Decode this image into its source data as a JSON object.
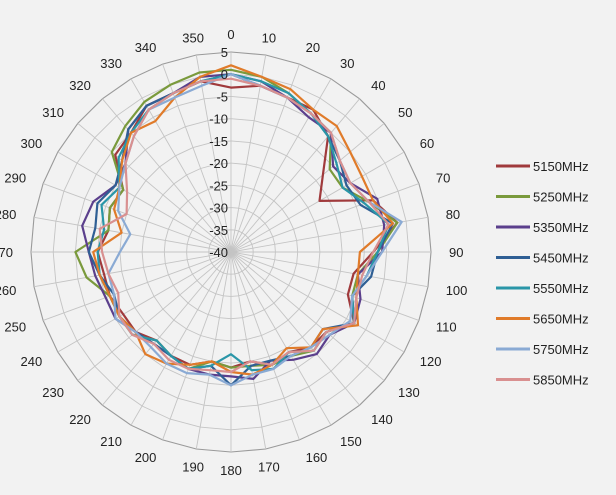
{
  "chart_data": {
    "type": "radar",
    "angle_labels": [
      "0",
      "10",
      "20",
      "30",
      "40",
      "50",
      "60",
      "70",
      "80",
      "90",
      "100",
      "110",
      "120",
      "130",
      "140",
      "150",
      "160",
      "170",
      "180",
      "190",
      "200",
      "210",
      "220",
      "230",
      "240",
      "250",
      "260",
      "270",
      "280",
      "290",
      "300",
      "310",
      "320",
      "330",
      "340",
      "350"
    ],
    "radial_ticks": [
      "5",
      "0",
      "-5",
      "-10",
      "-15",
      "-20",
      "-25",
      "-30",
      "-35",
      "-40"
    ],
    "rlim": [
      -40,
      5
    ],
    "grid": true,
    "legend_position": "right",
    "series": [
      {
        "name": "5150MHz",
        "color": "#a03a3c",
        "values": [
          -3,
          -2,
          -3,
          -3,
          -6,
          -13,
          -17,
          -6,
          -2,
          -8,
          -12,
          -12,
          -8,
          -12,
          -12,
          -14,
          -13,
          -15,
          -14,
          -15,
          -13,
          -13,
          -14,
          -12,
          -12,
          -11,
          -11,
          -10,
          -12,
          -11,
          -12,
          -6,
          -5,
          -2,
          -2,
          -1
        ]
      },
      {
        "name": "5250MHz",
        "color": "#7a9a3c",
        "values": [
          1,
          0,
          -2,
          -4,
          -5,
          -11,
          -11,
          -7,
          -2,
          -7,
          -11,
          -11,
          -8,
          -12,
          -11,
          -13,
          -13,
          -14,
          -14,
          -15,
          -12,
          -13,
          -14,
          -11,
          -11,
          -11,
          -7,
          -5,
          -12,
          -11,
          -12,
          -5,
          -3,
          -1,
          0,
          1
        ]
      },
      {
        "name": "5350MHz",
        "color": "#5b3f8c",
        "values": [
          0,
          -1,
          -3,
          -5,
          -5,
          -10,
          -9,
          -5,
          -5,
          -6,
          -11,
          -9,
          -8,
          -11,
          -10,
          -12,
          -14,
          -11,
          -12,
          -12,
          -12,
          -13,
          -13,
          -12,
          -10,
          -10,
          -9,
          -8,
          -6,
          -7,
          -10,
          -9,
          -4,
          -2,
          -2,
          0
        ]
      },
      {
        "name": "5450MHz",
        "color": "#2f5f94",
        "values": [
          0,
          -2,
          -3,
          -4,
          -6,
          -8,
          -10,
          -9,
          -3,
          -7,
          -8,
          -11,
          -8,
          -13,
          -12,
          -13,
          -14,
          -14,
          -10,
          -14,
          -12,
          -13,
          -13,
          -12,
          -11,
          -12,
          -10,
          -8,
          -9,
          -8,
          -10,
          -8,
          -4,
          -2,
          -2,
          -1
        ]
      },
      {
        "name": "5550MHz",
        "color": "#2a96a8",
        "values": [
          0,
          -1,
          -2,
          -4,
          -6,
          -9,
          -11,
          -8,
          -4,
          -7,
          -9,
          -11,
          -8,
          -12,
          -11,
          -14,
          -12,
          -13,
          -17,
          -14,
          -12,
          -13,
          -14,
          -11,
          -11,
          -11,
          -10,
          -10,
          -11,
          -9,
          -11,
          -7,
          -5,
          -3,
          -2,
          -1
        ]
      },
      {
        "name": "5650MHz",
        "color": "#e07b2a",
        "values": [
          2,
          0,
          -1,
          -3,
          -3,
          -5,
          -6,
          -6,
          -3,
          -11,
          -11,
          -10,
          -7,
          -13,
          -12,
          -15,
          -13,
          -12,
          -13,
          -15,
          -13,
          -11,
          -10,
          -12,
          -11,
          -11,
          -10,
          -9,
          -15,
          -12,
          -11,
          -8,
          -5,
          -6,
          -3,
          0
        ]
      },
      {
        "name": "5750MHz",
        "color": "#8aaad4",
        "values": [
          0,
          -2,
          -3,
          -4,
          -5,
          -8,
          -9,
          -7,
          -1,
          -6,
          -9,
          -11,
          -9,
          -11,
          -12,
          -13,
          -12,
          -12,
          -10,
          -12,
          -11,
          -11,
          -12,
          -12,
          -10,
          -12,
          -12,
          -15,
          -17,
          -13,
          -11,
          -9,
          -6,
          -3,
          -3,
          -2
        ]
      },
      {
        "name": "5850MHz",
        "color": "#d99090",
        "values": [
          -1,
          -2,
          -3,
          -4,
          -5,
          -8,
          -9,
          -7,
          -4,
          -8,
          -10,
          -10,
          -8,
          -12,
          -11,
          -14,
          -13,
          -15,
          -13,
          -13,
          -12,
          -12,
          -13,
          -11,
          -11,
          -13,
          -12,
          -11,
          -10,
          -15,
          -13,
          -9,
          -6,
          -3,
          -2,
          -1
        ]
      }
    ]
  }
}
